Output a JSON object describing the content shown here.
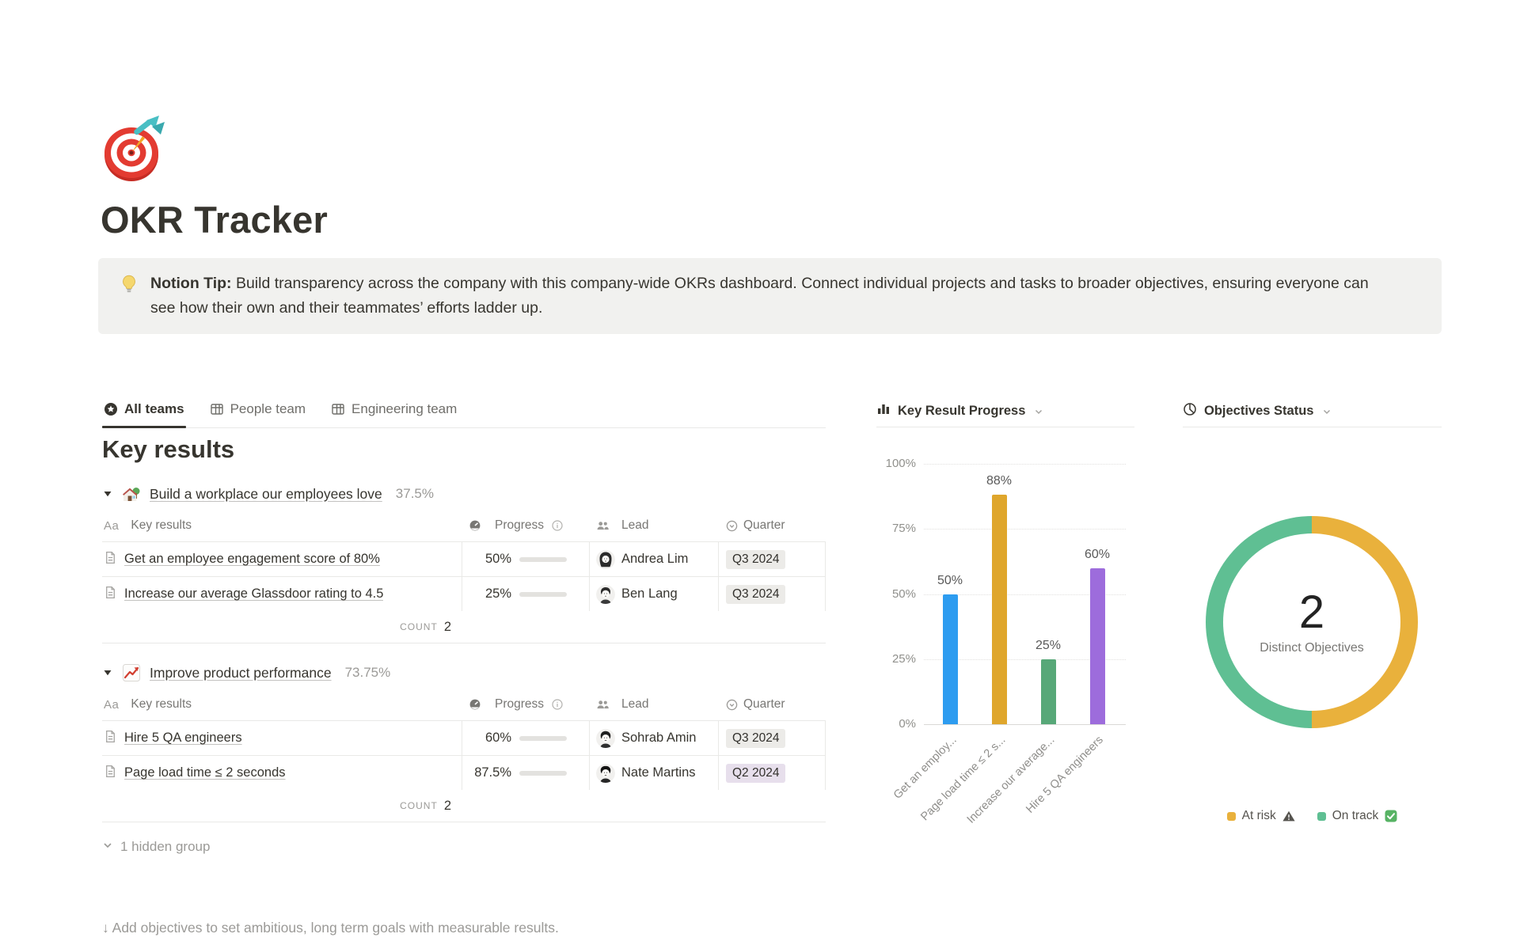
{
  "page": {
    "icon_name": "target-emoji",
    "title": "OKR Tracker",
    "callout": {
      "icon_name": "lightbulb-emoji",
      "label": "Notion Tip:",
      "text": " Build transparency across the company with this company-wide OKRs dashboard. Connect individual projects and tasks to broader objectives, ensuring everyone can see how their own and their teammates’ efforts ladder up."
    }
  },
  "tabs": [
    {
      "label": "All teams",
      "icon": "star-view-icon",
      "active": true
    },
    {
      "label": "People team",
      "icon": "table-view-icon",
      "active": false
    },
    {
      "label": "Engineering team",
      "icon": "table-view-icon",
      "active": false
    }
  ],
  "section_heading": "Key results",
  "columns": {
    "name_icon": "Aa",
    "name": "Key results",
    "progress": "Progress",
    "lead": "Lead",
    "quarter": "Quarter"
  },
  "groups": [
    {
      "emoji_name": "house-with-garden-emoji",
      "title": "Build a workplace our employees love",
      "percent": "37.5%",
      "rows": [
        {
          "title": "Get an employee engagement score of 80%",
          "progress_label": "50%",
          "progress": 50,
          "lead": "Andrea Lim",
          "quarter": "Q3 2024",
          "quarter_bg": "#ECEBE8"
        },
        {
          "title": "Increase our average Glassdoor rating to 4.5",
          "progress_label": "25%",
          "progress": 25,
          "lead": "Ben Lang",
          "quarter": "Q3 2024",
          "quarter_bg": "#ECEBE8"
        }
      ],
      "count_label": "COUNT",
      "count_value": "2"
    },
    {
      "emoji_name": "chart-increasing-emoji",
      "title": "Improve product performance",
      "percent": "73.75%",
      "rows": [
        {
          "title": "Hire 5 QA engineers",
          "progress_label": "60%",
          "progress": 60,
          "lead": "Sohrab Amin",
          "quarter": "Q3 2024",
          "quarter_bg": "#ECEBE8"
        },
        {
          "title": "Page load time ≤ 2 seconds",
          "progress_label": "87.5%",
          "progress": 87.5,
          "lead": "Nate Martins",
          "quarter": "Q2 2024",
          "quarter_bg": "#E7DFEC"
        }
      ],
      "count_label": "COUNT",
      "count_value": "2"
    }
  ],
  "hidden_group_label": "1 hidden group",
  "footer_hint": "↓ Add objectives to set ambitious, long term goals with measurable results.",
  "chart_data": [
    {
      "type": "bar",
      "title": "Key Result Progress",
      "categories": [
        "Get an employee engagement score of 80%",
        "Page load time ≤ 2 seconds",
        "Increase our average Glassdoor rating to 4.5",
        "Hire 5 QA engineers"
      ],
      "tick_labels": [
        "Get an employ...",
        "Page load time ≤ 2 s...",
        "Increase our average...",
        "Hire 5 QA engineers"
      ],
      "values": [
        50,
        88,
        25,
        60
      ],
      "value_labels": [
        "50%",
        "88%",
        "25%",
        "60%"
      ],
      "colors": [
        "#2D9CF0",
        "#DFA62C",
        "#57A878",
        "#9D6CDC"
      ],
      "xlabel": "",
      "ylabel": "",
      "ylim": [
        0,
        100
      ],
      "ytick_labels": [
        "0%",
        "25%",
        "50%",
        "75%",
        "100%"
      ],
      "grid": true
    },
    {
      "type": "pie",
      "title": "Objectives Status",
      "donut": true,
      "center_value": "2",
      "center_label": "Distinct Objectives",
      "slices": [
        {
          "label": "At risk",
          "value": 1,
          "color": "#E9B13C"
        },
        {
          "label": "On track",
          "value": 1,
          "color": "#5FBF93"
        }
      ],
      "legend": [
        {
          "label": "At risk",
          "icon": "warning-icon"
        },
        {
          "label": "On track",
          "icon": "check-icon"
        }
      ],
      "legend_position": "bottom"
    }
  ]
}
